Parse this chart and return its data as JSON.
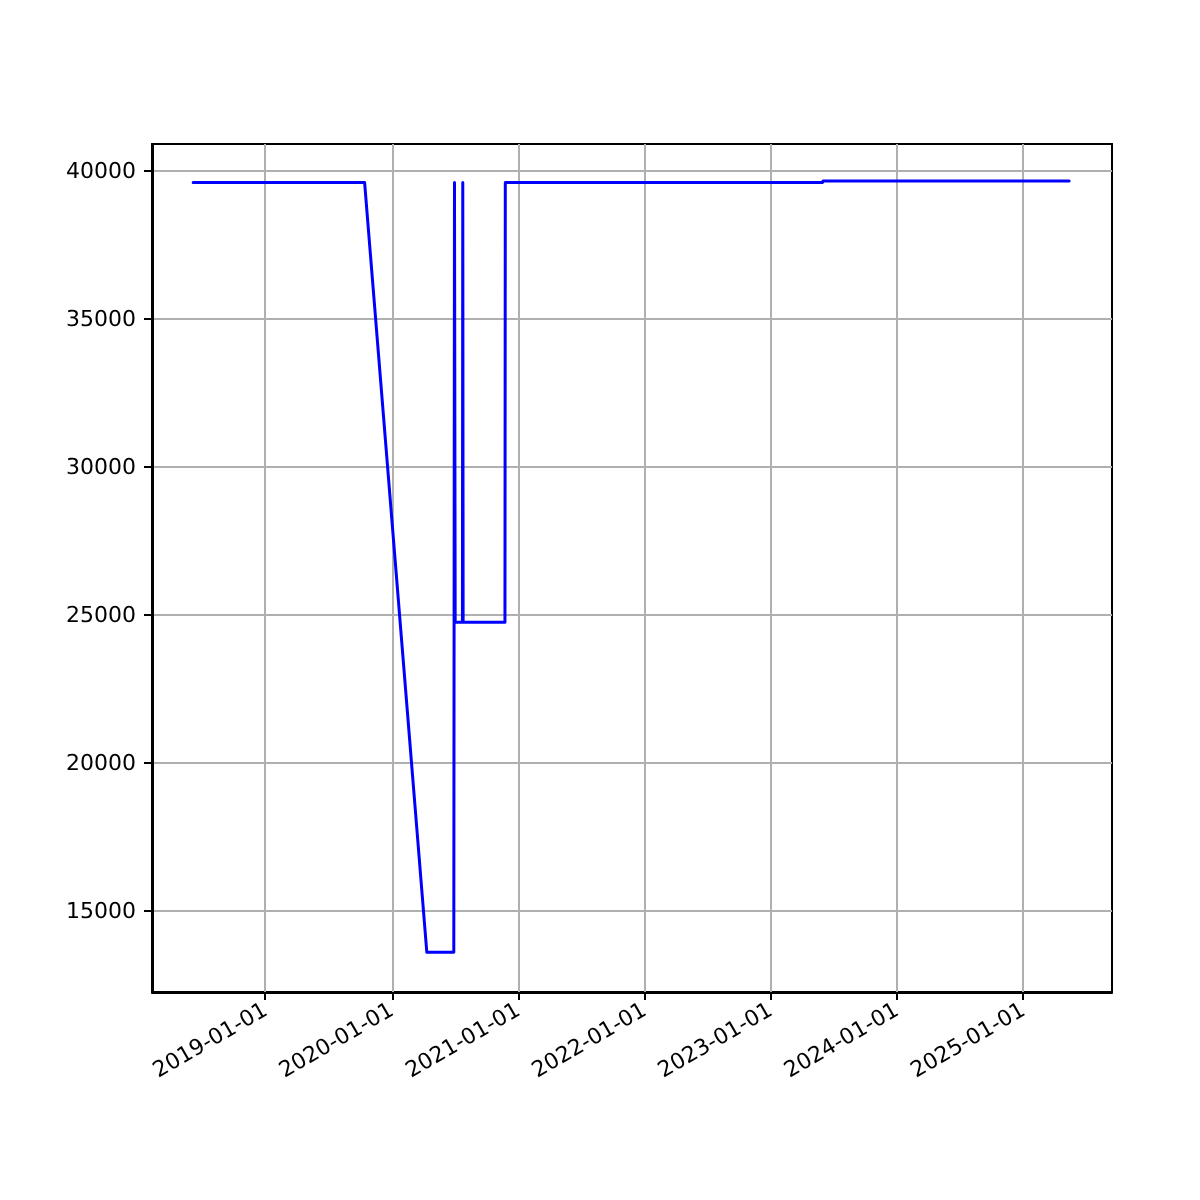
{
  "chart_data": {
    "type": "line",
    "x": [
      "2018-06-06",
      "2019-10-15",
      "2020-04-12",
      "2020-06-29",
      "2020-07-01",
      "2020-07-03",
      "2020-07-24",
      "2020-07-25",
      "2020-07-26",
      "2020-11-24",
      "2020-11-25",
      "2023-06-01",
      "2023-06-02",
      "2025-05-14"
    ],
    "series": [
      {
        "color": "#0000ff",
        "values": [
          39600,
          39600,
          13600,
          13600,
          39600,
          24750,
          24750,
          39600,
          24750,
          24750,
          39600,
          39600,
          39650,
          39650
        ]
      }
    ],
    "xlim": [
      "2018-02-07",
      "2025-09-15"
    ],
    "xticks": [
      "2019-01-01",
      "2020-01-01",
      "2021-01-01",
      "2022-01-01",
      "2023-01-01",
      "2024-01-01",
      "2025-01-01"
    ],
    "ylim": [
      12260,
      40900
    ],
    "yticks": [
      15000,
      20000,
      25000,
      30000,
      35000,
      40000
    ],
    "grid": true,
    "marker": "none",
    "line_style": "solid"
  }
}
